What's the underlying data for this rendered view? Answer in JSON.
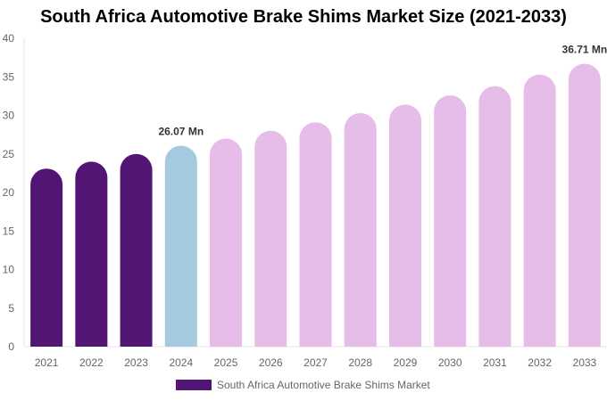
{
  "chart_data": {
    "type": "bar",
    "title": "South Africa Automotive Brake Shims Market Size (2021-2033)",
    "categories": [
      "2021",
      "2022",
      "2023",
      "2024",
      "2025",
      "2026",
      "2027",
      "2028",
      "2029",
      "2030",
      "2031",
      "2032",
      "2033"
    ],
    "series": [
      {
        "name": "South Africa Automotive Brake Shims Market",
        "values": [
          23.1,
          24.0,
          25.0,
          26.07,
          27.0,
          28.0,
          29.1,
          30.3,
          31.4,
          32.6,
          33.8,
          35.3,
          36.71
        ]
      }
    ],
    "bar_colors": [
      "#531574",
      "#531574",
      "#531574",
      "#a3cadf",
      "#e6bce8",
      "#e6bce8",
      "#e6bce8",
      "#e6bce8",
      "#e6bce8",
      "#e6bce8",
      "#e6bce8",
      "#e6bce8",
      "#e6bce8"
    ],
    "data_labels": [
      {
        "index": 3,
        "text": "26.07 Mn"
      },
      {
        "index": 12,
        "text": "36.71 Mn"
      }
    ],
    "ylim": [
      0,
      40
    ],
    "yticks": [
      0,
      5,
      10,
      15,
      20,
      25,
      30,
      35,
      40
    ],
    "xlabel": "",
    "ylabel": "",
    "grid": false,
    "legend": {
      "position": "bottom",
      "label": "South Africa Automotive Brake Shims Market",
      "color": "#531574"
    }
  }
}
